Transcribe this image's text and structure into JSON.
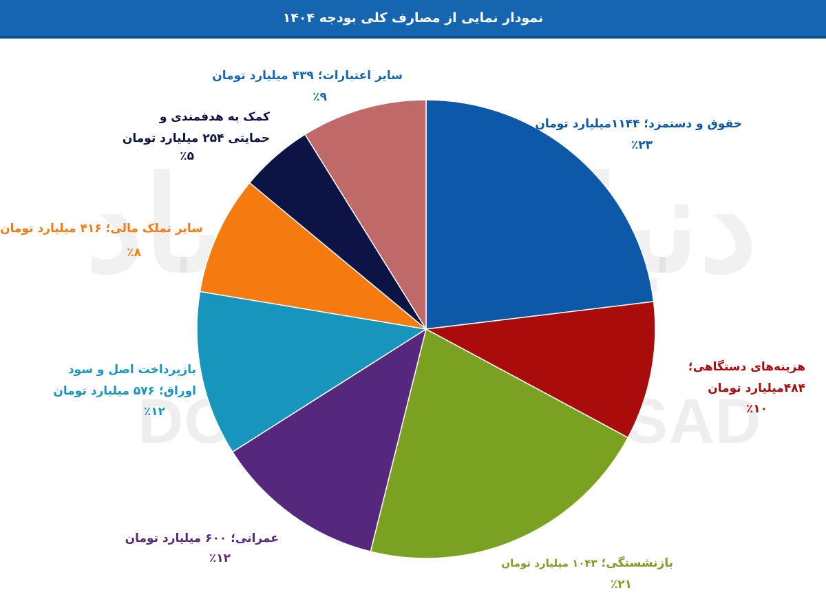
{
  "header": {
    "title": "نمودار نمایی از مصارف کلی بودجه ۱۴۰۴"
  },
  "watermark": {
    "text": "DONYA-E-EQTESAD",
    "logo": "دنیای اقتصاد"
  },
  "colors": {
    "header": "#1565b0",
    "hoghough": "#0e58a8",
    "hazineh": "#aa0c0c",
    "bazneshastegi": "#7aa11f",
    "omrani": "#55287e",
    "bazpardakht": "#1795bd",
    "tamalok": "#f57a10",
    "komak": "#0b1445",
    "sayer": "#bf6a68"
  },
  "labels": {
    "hoghough": {
      "line1": "حقوق و دستمزد؛ ۱۱۴۴میلیارد تومان",
      "pct": "٪۲۳"
    },
    "hazineh": {
      "line1": "هزینه‌های دستگاهی؛",
      "line2": "۴۸۴میلیارد تومان",
      "pct": "٪۱۰"
    },
    "bazneshastegi": {
      "name": "بازنشستگی؛ ",
      "amount": "۱۰۴۳  میلیارد تومان",
      "pct": "٪۲۱"
    },
    "omrani": {
      "line1": "عمرانی؛ ۶۰۰ میلیارد تومان",
      "pct": "٪۱۲"
    },
    "bazpardakht": {
      "line1": "بازپرداخت اصل و سود",
      "line2": "اوراق؛ ۵۷۶ میلیارد تومان",
      "pct": "٪۱۲"
    },
    "tamalok": {
      "line1": "سایر تملک مالی؛ ۴۱۶ میلیارد تومان",
      "pct": "٪۸"
    },
    "komak": {
      "line1": "کمک به هدفمندی و",
      "line2": "حمایتی  ۲۵۴ میلیارد تومان",
      "pct": "٪۵"
    },
    "sayer": {
      "line1": "سایر اعتبارات؛ ۴۳۹ میلیارد تومان",
      "pct": "٪۹"
    }
  },
  "chart_data": {
    "type": "pie",
    "title": "نمودار نمایی از مصارف کلی بودجه ۱۴۰۴",
    "start_angle_deg": 0,
    "direction": "clockwise",
    "slices": [
      {
        "key": "hoghough",
        "label": "حقوق و دستمزد",
        "value": 1144,
        "percent": 23,
        "color": "#0e58a8"
      },
      {
        "key": "hazineh",
        "label": "هزینه‌های دستگاهی",
        "value": 484,
        "percent": 10,
        "color": "#aa0c0c"
      },
      {
        "key": "bazneshastegi",
        "label": "بازنشستگی",
        "value": 1043,
        "percent": 21,
        "color": "#7aa11f"
      },
      {
        "key": "omrani",
        "label": "عمرانی",
        "value": 600,
        "percent": 12,
        "color": "#55287e"
      },
      {
        "key": "bazpardakht",
        "label": "بازپرداخت اصل و سود اوراق",
        "value": 576,
        "percent": 12,
        "color": "#1795bd"
      },
      {
        "key": "tamalok",
        "label": "سایر تملک مالی",
        "value": 416,
        "percent": 8,
        "color": "#f57a10"
      },
      {
        "key": "komak",
        "label": "کمک به هدفمندی و حمایتی",
        "value": 254,
        "percent": 5,
        "color": "#0b1445"
      },
      {
        "key": "sayer",
        "label": "سایر اعتبارات",
        "value": 439,
        "percent": 9,
        "color": "#bf6a68"
      }
    ],
    "unit": "میلیارد تومان"
  }
}
